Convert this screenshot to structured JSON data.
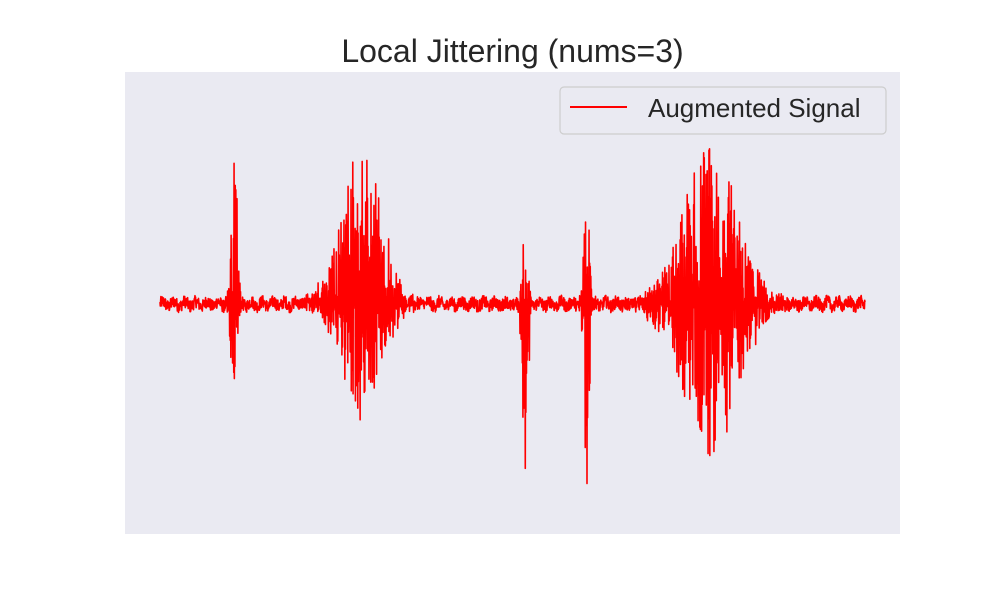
{
  "chart_data": {
    "type": "line",
    "title": "Local Jittering (nums=3)",
    "xlabel": "",
    "ylabel": "",
    "grid": false,
    "axes_visible": false,
    "legend_position": "upper-right",
    "colors": {
      "series": "#ff0000",
      "plot_background": "#eaeaf2",
      "page_background": "#ffffff"
    },
    "x_range": [
      0,
      1
    ],
    "y_range": [
      -1.0,
      1.0
    ],
    "series": [
      {
        "name": "Augmented Signal",
        "color": "#ff0000",
        "baseline_noise": 0.03,
        "events": [
          {
            "center": 0.105,
            "width": 0.012,
            "peak_high": 0.95,
            "peak_low": -0.75
          },
          {
            "center": 0.285,
            "width": 0.09,
            "peak_high": 0.78,
            "peak_low": -0.56
          },
          {
            "center": 0.518,
            "width": 0.012,
            "peak_high": 0.36,
            "peak_low": -0.93
          },
          {
            "center": 0.605,
            "width": 0.012,
            "peak_high": 0.63,
            "peak_low": -0.92
          },
          {
            "center": 0.78,
            "width": 0.12,
            "peak_high": 0.78,
            "peak_low": -0.75
          }
        ]
      }
    ]
  }
}
